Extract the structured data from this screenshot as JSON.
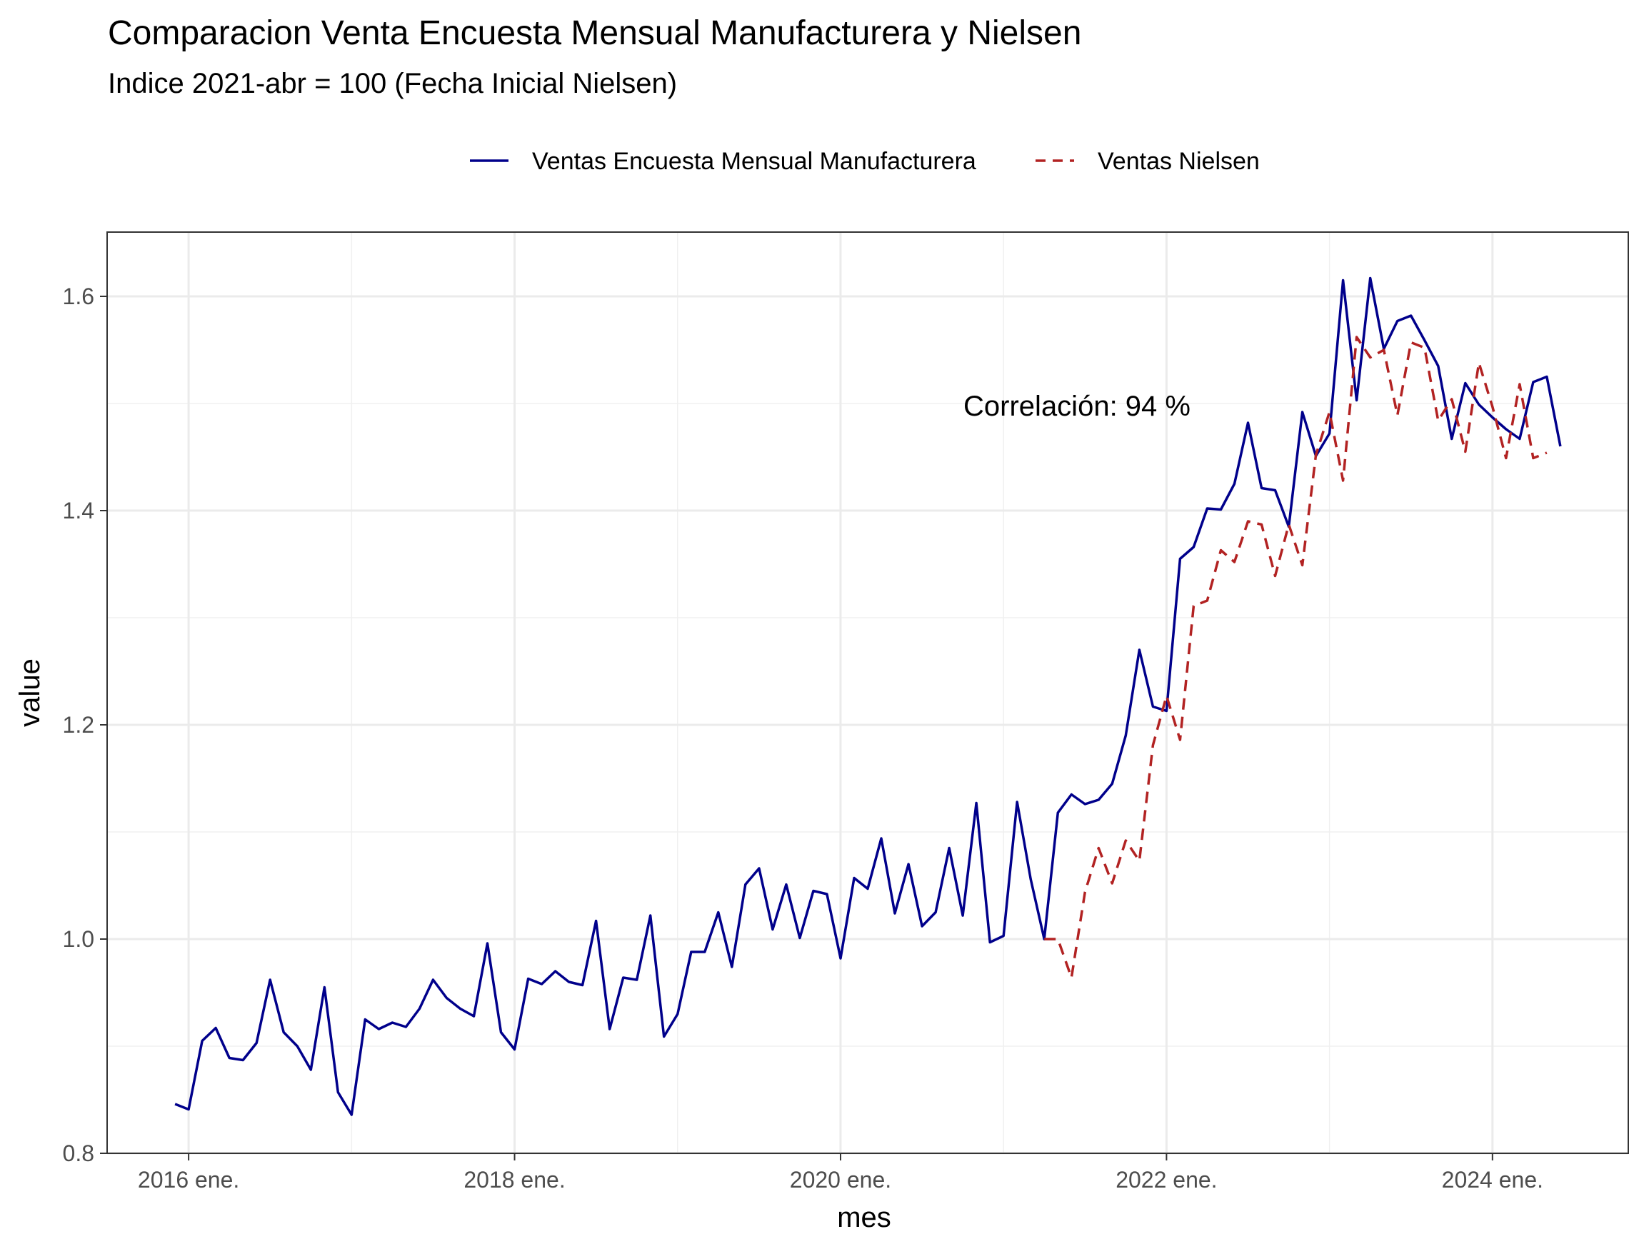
{
  "chart_data": {
    "type": "line",
    "title": "Comparacion Venta Encuesta Mensual Manufacturera y Nielsen",
    "subtitle": "Indice 2021-abr = 100 (Fecha Inicial Nielsen)",
    "xlabel": "mes",
    "ylabel": "value",
    "xlim": [
      "2015-07-01",
      "2024-11-01"
    ],
    "ylim": [
      0.8,
      1.66
    ],
    "x_ticks": [
      "2016-01-01",
      "2018-01-01",
      "2020-01-01",
      "2022-01-01",
      "2024-01-01"
    ],
    "x_tick_labels": [
      "2016 ene.",
      "2018 ene.",
      "2020 ene.",
      "2022 ene.",
      "2024 ene."
    ],
    "y_ticks": [
      0.8,
      1.0,
      1.2,
      1.4,
      1.6
    ],
    "y_tick_labels": [
      "0.8",
      "1.0",
      "1.2",
      "1.4",
      "1.6"
    ],
    "grid": true,
    "legend_position": "top",
    "annotation": "Correlación:  94 %",
    "series": [
      {
        "name": "Ventas Encuesta Mensual Manufacturera",
        "color": "#00008B",
        "style": "solid",
        "start": "2015-12-01",
        "values": [
          0.846,
          0.841,
          0.905,
          0.917,
          0.889,
          0.887,
          0.903,
          0.962,
          0.913,
          0.9,
          0.878,
          0.955,
          0.857,
          0.836,
          0.925,
          0.916,
          0.922,
          0.918,
          0.935,
          0.962,
          0.945,
          0.935,
          0.928,
          0.996,
          0.913,
          0.897,
          0.963,
          0.958,
          0.97,
          0.96,
          0.957,
          1.017,
          0.916,
          0.964,
          0.962,
          1.022,
          0.909,
          0.93,
          0.988,
          0.988,
          1.025,
          0.974,
          1.051,
          1.066,
          1.009,
          1.051,
          1.001,
          1.045,
          1.042,
          0.982,
          1.057,
          1.047,
          1.094,
          1.024,
          1.07,
          1.012,
          1.025,
          1.085,
          1.022,
          1.127,
          0.997,
          1.003,
          1.128,
          1.056,
          1.0,
          1.118,
          1.135,
          1.126,
          1.13,
          1.145,
          1.19,
          1.27,
          1.217,
          1.213,
          1.355,
          1.366,
          1.402,
          1.401,
          1.425,
          1.482,
          1.421,
          1.419,
          1.385,
          1.492,
          1.451,
          1.472,
          1.615,
          1.503,
          1.617,
          1.551,
          1.577,
          1.582,
          1.559,
          1.535,
          1.467,
          1.519,
          1.499,
          1.487,
          1.476,
          1.467,
          1.52,
          1.525,
          1.46
        ]
      },
      {
        "name": "Ventas Nielsen",
        "color": "#B22222",
        "style": "dashed",
        "start": "2021-04-01",
        "values": [
          1.0,
          1.0,
          0.964,
          1.044,
          1.085,
          1.052,
          1.092,
          1.073,
          1.181,
          1.227,
          1.186,
          1.311,
          1.316,
          1.363,
          1.352,
          1.39,
          1.387,
          1.339,
          1.387,
          1.349,
          1.452,
          1.492,
          1.428,
          1.562,
          1.543,
          1.55,
          1.489,
          1.557,
          1.552,
          1.484,
          1.504,
          1.455,
          1.538,
          1.497,
          1.449,
          1.518,
          1.449,
          1.454
        ]
      }
    ]
  }
}
